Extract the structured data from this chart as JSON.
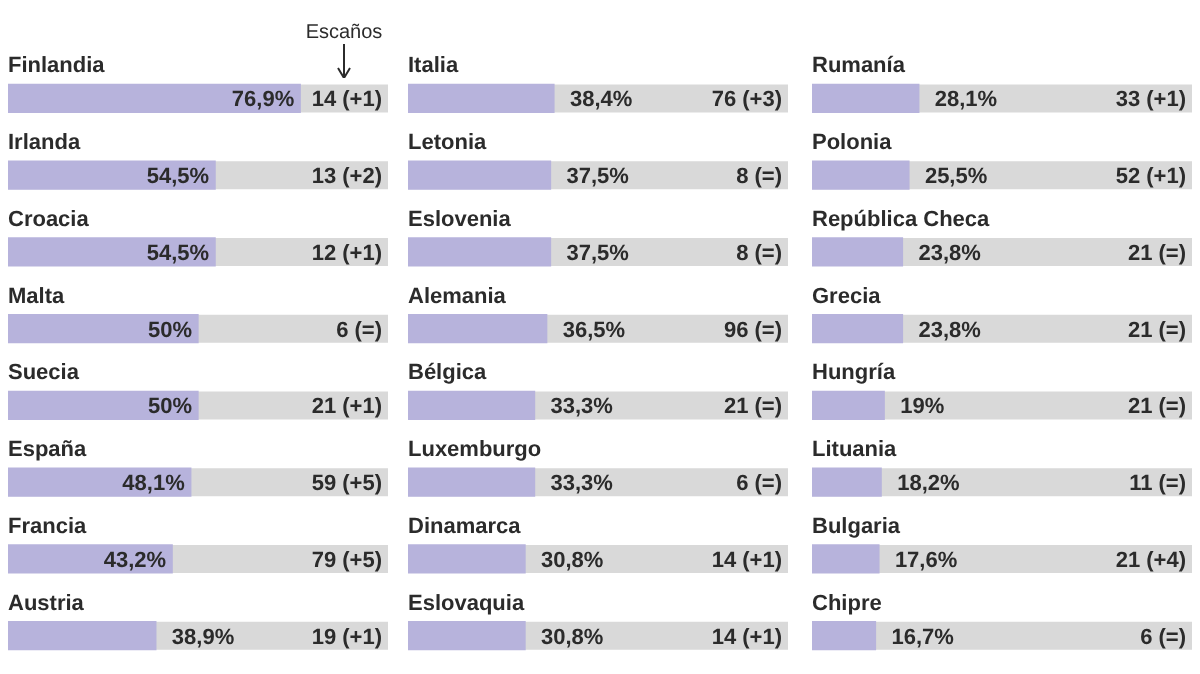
{
  "chart_data": [
    {
      "type": "bar",
      "orientation": "horizontal",
      "color": "#b7b3dc",
      "xlim": [
        0,
        100
      ],
      "tick_labels": "y",
      "categories": [
        "Finlandia",
        "Irlanda",
        "Croacia",
        "Malta",
        "Suecia",
        "España",
        "Francia",
        "Austria"
      ],
      "values": [
        76.9,
        54.5,
        54.5,
        50,
        50,
        48.1,
        43.2,
        38.9
      ],
      "value_labels": [
        "76,9%",
        "54,5%",
        "54,5%",
        "50%",
        "50%",
        "48,1%",
        "43,2%",
        "38,9%"
      ],
      "annotations": [
        "Escaños",
        "14 (+1)",
        "13 (+2)",
        "12 (+1)",
        "6 (=)",
        "21 (+1)",
        "59 (+5)",
        "79 (+5)",
        "19 (+1)"
      ]
    },
    {
      "type": "bar",
      "orientation": "horizontal",
      "color": "#b7b3dc",
      "xlim": [
        0,
        100
      ],
      "tick_labels": "y",
      "categories": [
        "Italia",
        "Letonia",
        "Eslovenia",
        "Alemania",
        "Bélgica",
        "Luxemburgo",
        "Dinamarca",
        "Eslovaquia"
      ],
      "values": [
        38.4,
        37.5,
        37.5,
        36.5,
        33.3,
        33.3,
        30.8,
        30.8
      ],
      "value_labels": [
        "38,4%",
        "37,5%",
        "37,5%",
        "36,5%",
        "33,3%",
        "33,3%",
        "30,8%",
        "30,8%"
      ],
      "annotations": [
        "76 (+3)",
        "8 (=)",
        "8 (=)",
        "96 (=)",
        "21 (=)",
        "6 (=)",
        "14 (+1)",
        "14 (+1)"
      ]
    },
    {
      "type": "bar",
      "orientation": "horizontal",
      "color": "#b7b3dc",
      "xlim": [
        0,
        100
      ],
      "tick_labels": "y",
      "categories": [
        "Rumanía",
        "Polonia",
        "República Checa",
        "Grecia",
        "Hungría",
        "Lituania",
        "Bulgaria",
        "Chipre"
      ],
      "values": [
        28.1,
        25.5,
        23.8,
        23.8,
        19,
        18.2,
        17.6,
        16.7
      ],
      "value_labels": [
        "28,1%",
        "25,5%",
        "23,8%",
        "23,8%",
        "19%",
        "18,2%",
        "17,6%",
        "16,7%"
      ],
      "annotations": [
        "33 (+1)",
        "52 (+1)",
        "21 (=)",
        "21 (=)",
        "21 (=)",
        "11 (=)",
        "21 (+4)",
        "6 (=)"
      ]
    }
  ]
}
